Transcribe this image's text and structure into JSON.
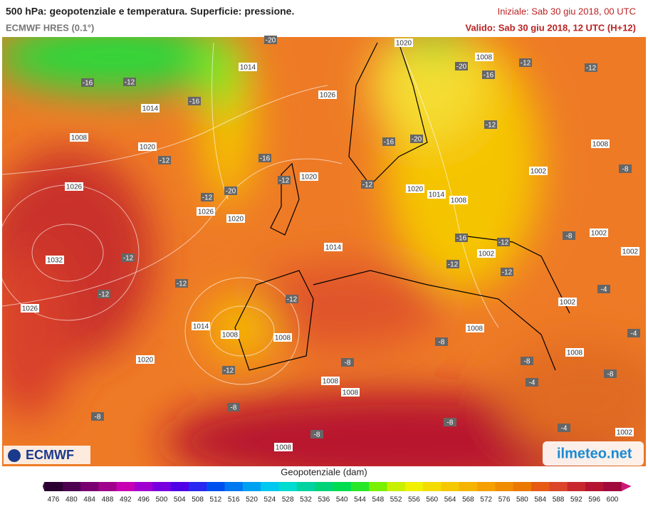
{
  "header": {
    "title": "500 hPa: geopotenziale e temperatura. Superficie: pressione.",
    "model": "ECMWF HRES (0.1°)",
    "init": "Iniziale: Sab 30 giu 2018, 00 UTC",
    "valid": "Valido: Sab 30 giu 2018, 12 UTC (H+12)"
  },
  "map": {
    "labels": [
      "1020",
      "1008",
      "-16",
      "-12",
      "1014",
      "-20",
      "-20",
      "-16",
      "-12",
      "-12",
      "1026",
      "-16",
      "1014",
      "1008",
      "1020",
      "-12",
      "-16",
      "-16",
      "-20",
      "-12",
      "1008",
      "-8",
      "1002",
      "1020",
      "-12",
      "-12",
      "1020",
      "1014",
      "1008",
      "1026",
      "-12",
      "-20",
      "1026",
      "1020",
      "-8",
      "1002",
      "-16",
      "-12",
      "1002",
      "1014",
      "1002",
      "1032",
      "-12",
      "-12",
      "-12",
      "-12",
      "-12",
      "-4",
      "-12",
      "1002",
      "1026",
      "1014",
      "1008",
      "1008",
      "1008",
      "-4",
      "-8",
      "1008",
      "-8",
      "-8",
      "1020",
      "-12",
      "-8",
      "-4",
      "1008",
      "1008",
      "-8",
      "-8",
      "-8",
      "-4",
      "1002",
      "-8",
      "1008"
    ]
  },
  "colorbar": {
    "title": "Geopotenziale (dam)",
    "ticks": [
      476,
      480,
      484,
      488,
      492,
      496,
      500,
      504,
      508,
      512,
      516,
      520,
      524,
      528,
      532,
      536,
      540,
      544,
      548,
      552,
      556,
      560,
      564,
      568,
      572,
      576,
      580,
      584,
      588,
      592,
      596,
      600
    ],
    "colors": [
      "#2a0030",
      "#4b0050",
      "#780070",
      "#a0008c",
      "#c800b4",
      "#a000d0",
      "#7800e0",
      "#5000e6",
      "#2828f0",
      "#0050f0",
      "#0078f0",
      "#00a0f0",
      "#00c8f0",
      "#00dcd0",
      "#00d2a0",
      "#00d278",
      "#00dc50",
      "#28e628",
      "#78f000",
      "#c8f000",
      "#f0f000",
      "#f5dc00",
      "#f5c800",
      "#f5b400",
      "#f5a000",
      "#f08c00",
      "#eb7800",
      "#e65a14",
      "#dc4628",
      "#c8282d",
      "#b41432",
      "#a00a3c"
    ]
  },
  "logos": {
    "left": "ECMWF",
    "right": "ilmeteo.net"
  }
}
